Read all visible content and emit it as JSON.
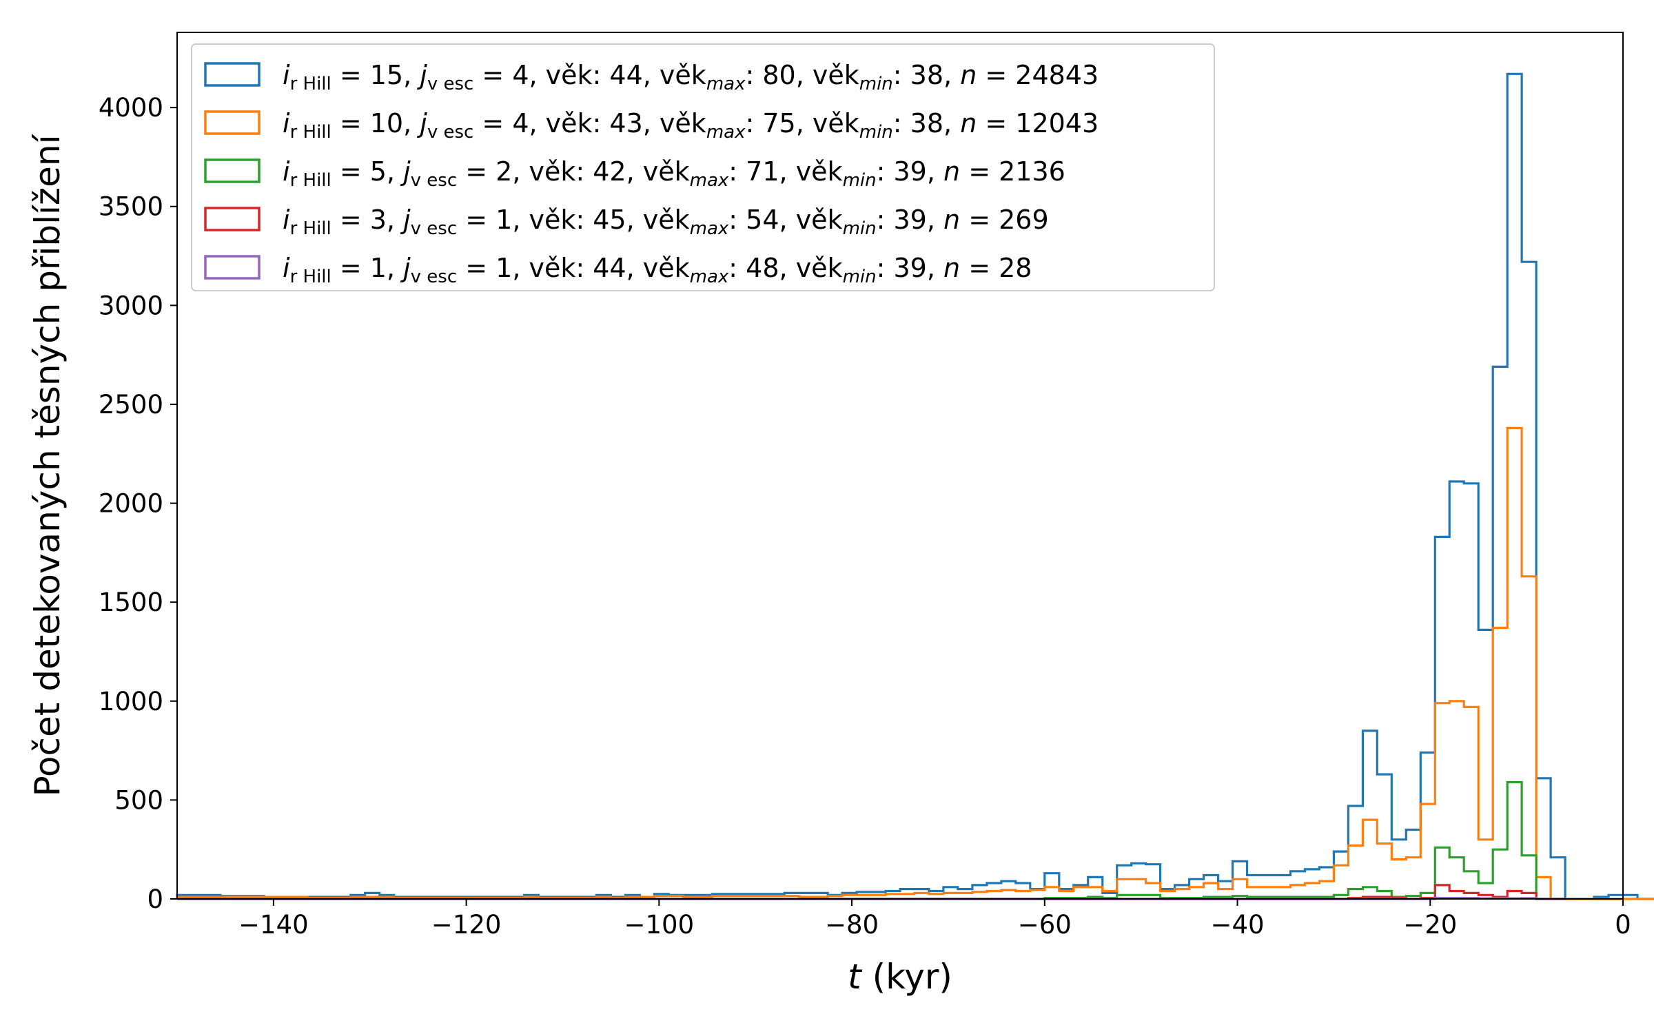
{
  "chart_data": {
    "type": "histogram",
    "xlabel_var": "t",
    "xlabel_unit": " (kyr)",
    "ylabel": "Počet detekovaných těsných přiblížení",
    "xlim": [
      -150,
      0
    ],
    "ylim": [
      0,
      4380
    ],
    "x_ticks": [
      -140,
      -120,
      -100,
      -80,
      -60,
      -40,
      -20,
      0
    ],
    "x_tick_labels": [
      "−140",
      "−120",
      "−100",
      "−80",
      "−60",
      "−40",
      "−20",
      "0"
    ],
    "y_ticks": [
      0,
      500,
      1000,
      1500,
      2000,
      2500,
      3000,
      3500,
      4000
    ],
    "y_tick_labels": [
      "0",
      "500",
      "1000",
      "1500",
      "2000",
      "2500",
      "3000",
      "3500",
      "4000"
    ],
    "grid": false,
    "legend_position": "upper-left",
    "bin_start": -150,
    "bin_width": 1.5,
    "series": [
      {
        "color": "#1f77b4",
        "legend": {
          "i_sub": "r Hill",
          "i_val": " = 15, ",
          "j_sub": "v esc",
          "j_val": " = 4, věk:  44, věk",
          "max_val": ":  80, věk",
          "min_val": ": 38, ",
          "n_val": " = 24843"
        },
        "start": -150,
        "values": [
          20,
          20,
          20,
          15,
          15,
          15,
          10,
          10,
          10,
          10,
          10,
          10,
          20,
          30,
          20,
          10,
          10,
          10,
          10,
          10,
          10,
          10,
          10,
          10,
          20,
          10,
          10,
          10,
          10,
          20,
          10,
          20,
          10,
          25,
          20,
          20,
          20,
          25,
          25,
          25,
          25,
          25,
          30,
          30,
          30,
          20,
          30,
          35,
          35,
          40,
          50,
          50,
          40,
          60,
          50,
          70,
          80,
          90,
          80,
          50,
          130,
          50,
          70,
          110,
          30,
          170,
          180,
          175,
          50,
          70,
          100,
          120,
          90,
          190,
          120,
          120,
          120,
          140,
          150,
          160,
          240,
          470,
          850,
          630,
          300,
          350,
          740,
          1830,
          2110,
          2100,
          1360,
          2690,
          4170,
          3220,
          610,
          210,
          0,
          0,
          10,
          20,
          20,
          0,
          0,
          0,
          0,
          0,
          0,
          0,
          10
        ]
      },
      {
        "color": "#ff7f0e",
        "legend": {
          "i_sub": "r Hill",
          "i_val": " = 10, ",
          "j_sub": "v esc",
          "j_val": " = 4, věk:  43, věk",
          "max_val": ":  75, věk",
          "min_val": ": 38, ",
          "n_val": " = 12043"
        },
        "start": -150,
        "values": [
          10,
          10,
          10,
          10,
          10,
          10,
          10,
          10,
          10,
          5,
          5,
          5,
          10,
          10,
          10,
          5,
          5,
          5,
          5,
          5,
          5,
          5,
          5,
          5,
          10,
          5,
          5,
          5,
          5,
          10,
          5,
          10,
          10,
          15,
          15,
          10,
          10,
          15,
          15,
          15,
          15,
          15,
          15,
          10,
          10,
          15,
          20,
          20,
          20,
          25,
          25,
          30,
          25,
          30,
          30,
          35,
          40,
          45,
          40,
          45,
          60,
          40,
          60,
          60,
          40,
          100,
          100,
          80,
          40,
          50,
          60,
          80,
          50,
          100,
          60,
          60,
          60,
          70,
          80,
          90,
          170,
          270,
          400,
          280,
          200,
          210,
          480,
          990,
          1000,
          970,
          300,
          1370,
          2380,
          1630,
          110,
          0,
          0,
          0,
          0,
          0,
          0,
          0,
          0,
          0,
          0,
          0,
          0,
          0,
          5
        ]
      },
      {
        "color": "#2ca02c",
        "legend": {
          "i_sub": "r Hill",
          "i_val": " =  5, ",
          "j_sub": "v esc",
          "j_val": " = 2, věk:  42, věk",
          "max_val": ":  71, věk",
          "min_val": ": 39, ",
          "n_val": " = 2136"
        },
        "start": -150,
        "values": [
          0,
          0,
          0,
          0,
          0,
          0,
          0,
          0,
          0,
          0,
          0,
          0,
          0,
          0,
          0,
          0,
          0,
          0,
          0,
          0,
          0,
          0,
          0,
          0,
          0,
          0,
          0,
          0,
          0,
          0,
          0,
          0,
          0,
          0,
          0,
          0,
          0,
          0,
          0,
          0,
          0,
          0,
          0,
          0,
          0,
          0,
          0,
          0,
          0,
          0,
          0,
          0,
          0,
          0,
          0,
          0,
          0,
          0,
          0,
          0,
          5,
          5,
          5,
          10,
          5,
          20,
          20,
          20,
          5,
          5,
          5,
          10,
          10,
          15,
          10,
          10,
          10,
          10,
          10,
          10,
          20,
          50,
          60,
          40,
          10,
          15,
          30,
          260,
          210,
          140,
          80,
          250,
          590,
          220,
          0,
          0
        ]
      },
      {
        "color": "#d62728",
        "legend": {
          "i_sub": "r Hill",
          "i_val": " =  3, ",
          "j_sub": "v esc",
          "j_val": " = 1, věk:  45, věk",
          "max_val": ":  54, věk",
          "min_val": ": 39, ",
          "n_val": " = 269"
        },
        "start": -150,
        "values": [
          0,
          0,
          0,
          0,
          0,
          0,
          0,
          0,
          0,
          0,
          0,
          0,
          0,
          0,
          0,
          0,
          0,
          0,
          0,
          0,
          0,
          0,
          0,
          0,
          0,
          0,
          0,
          0,
          0,
          0,
          0,
          0,
          0,
          0,
          0,
          0,
          0,
          0,
          0,
          0,
          0,
          0,
          0,
          0,
          0,
          0,
          0,
          0,
          0,
          0,
          0,
          0,
          0,
          0,
          0,
          0,
          0,
          0,
          0,
          0,
          0,
          0,
          0,
          0,
          0,
          0,
          0,
          0,
          0,
          0,
          0,
          0,
          0,
          0,
          0,
          0,
          0,
          0,
          0,
          0,
          0,
          5,
          10,
          10,
          5,
          0,
          5,
          70,
          40,
          30,
          20,
          10,
          40,
          30,
          0,
          0
        ]
      },
      {
        "color": "#9467bd",
        "legend": {
          "i_sub": "r Hill",
          "i_val": " =  1, ",
          "j_sub": "v esc",
          "j_val": " = 1, věk:  44, věk",
          "max_val": ":  48, věk",
          "min_val": ": 39, ",
          "n_val": " = 28"
        },
        "start": -150,
        "values": [
          0,
          0,
          0,
          0,
          0,
          0,
          0,
          0,
          0,
          0,
          0,
          0,
          0,
          0,
          0,
          0,
          0,
          0,
          0,
          0,
          0,
          0,
          0,
          0,
          0,
          0,
          0,
          0,
          0,
          0,
          0,
          0,
          0,
          0,
          0,
          0,
          0,
          0,
          0,
          0,
          0,
          0,
          0,
          0,
          0,
          0,
          0,
          0,
          0,
          0,
          0,
          0,
          0,
          0,
          0,
          0,
          0,
          0,
          0,
          0,
          0,
          0,
          0,
          0,
          0,
          0,
          0,
          0,
          0,
          0,
          0,
          0,
          0,
          0,
          0,
          0,
          0,
          0,
          0,
          0,
          0,
          0,
          0,
          0,
          0,
          0,
          0,
          5,
          5,
          5,
          3,
          3,
          3,
          4,
          0,
          0
        ]
      }
    ]
  }
}
